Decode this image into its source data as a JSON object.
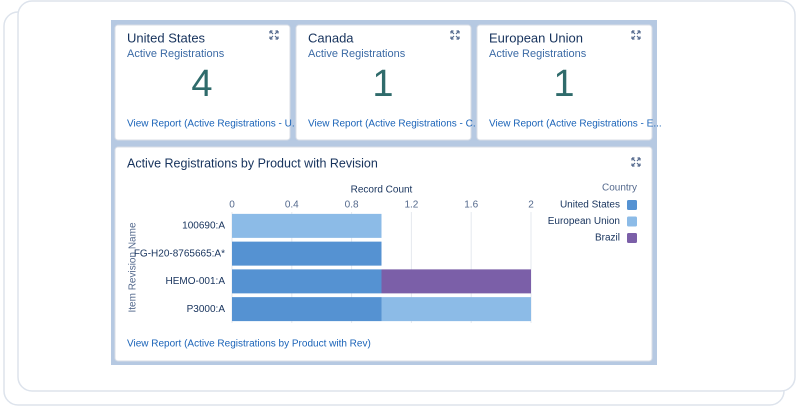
{
  "cards": [
    {
      "title": "United States",
      "subtitle": "Active Registrations",
      "value": 4,
      "link": "View Report (Active Registrations - U..."
    },
    {
      "title": "Canada",
      "subtitle": "Active Registrations",
      "value": 1,
      "link": "View Report (Active Registrations - C..."
    },
    {
      "title": "European Union",
      "subtitle": "Active Registrations",
      "value": 1,
      "link": "View Report (Active Registrations - E..."
    }
  ],
  "chart_data": {
    "type": "bar",
    "orientation": "horizontal",
    "stacked": true,
    "title": "Active Registrations by Product with Revision",
    "x_label": "Record Count",
    "y_label": "Item Revision Name",
    "categories": [
      "100690:A",
      "FG-H20-8765665:A*",
      "HEMO-001:A",
      "P3000:A"
    ],
    "series": [
      {
        "name": "United States",
        "color": "#5592d2",
        "values": [
          null,
          1,
          1,
          1
        ]
      },
      {
        "name": "European Union",
        "color": "#8cbbe7",
        "values": [
          1,
          null,
          null,
          1
        ]
      },
      {
        "name": "Brazil",
        "color": "#7b5fa8",
        "values": [
          null,
          null,
          1,
          null
        ]
      }
    ],
    "xlim": [
      0,
      2
    ],
    "xticks": [
      0,
      0.4,
      0.8,
      1.2,
      1.6,
      2
    ],
    "grid": true,
    "legend_title": "Country",
    "legend_position": "right",
    "link": "View Report (Active Registrations by Product with Rev)"
  }
}
